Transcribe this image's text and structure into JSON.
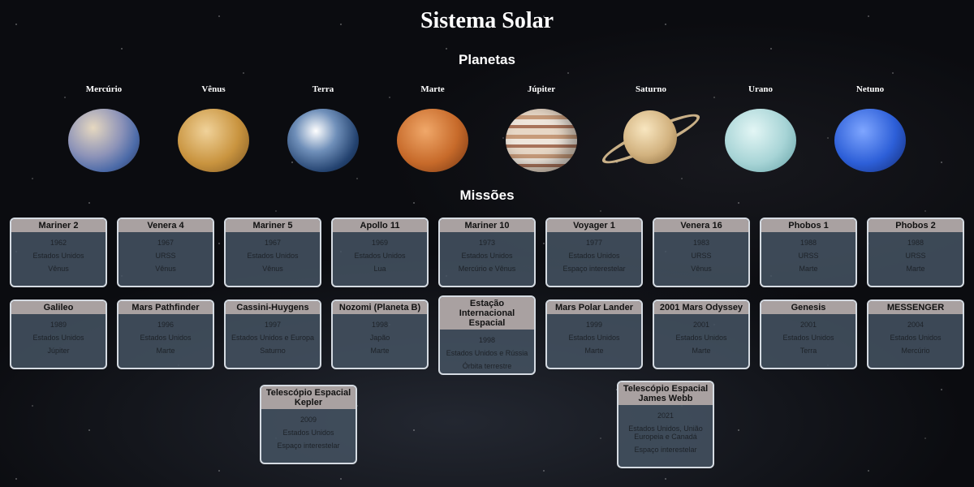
{
  "page": {
    "title": "Sistema Solar",
    "planets_heading": "Planetas",
    "missions_heading": "Missões"
  },
  "planets": [
    {
      "name": "Mercúrio",
      "icon": "mercury-icon"
    },
    {
      "name": "Vênus",
      "icon": "venus-icon"
    },
    {
      "name": "Terra",
      "icon": "earth-icon"
    },
    {
      "name": "Marte",
      "icon": "mars-icon"
    },
    {
      "name": "Júpiter",
      "icon": "jupiter-icon"
    },
    {
      "name": "Saturno",
      "icon": "saturn-icon"
    },
    {
      "name": "Urano",
      "icon": "uranus-icon"
    },
    {
      "name": "Netuno",
      "icon": "neptune-icon"
    }
  ],
  "missions": [
    {
      "name": "Mariner 2",
      "year": "1962",
      "country": "Estados Unidos",
      "target": "Vênus"
    },
    {
      "name": "Venera 4",
      "year": "1967",
      "country": "URSS",
      "target": "Vênus"
    },
    {
      "name": "Mariner 5",
      "year": "1967",
      "country": "Estados Unidos",
      "target": "Vênus"
    },
    {
      "name": "Apollo 11",
      "year": "1969",
      "country": "Estados Unidos",
      "target": "Lua"
    },
    {
      "name": "Mariner 10",
      "year": "1973",
      "country": "Estados Unidos",
      "target": "Mercúrio e Vênus"
    },
    {
      "name": "Voyager 1",
      "year": "1977",
      "country": "Estados Unidos",
      "target": "Espaço interestelar"
    },
    {
      "name": "Venera 16",
      "year": "1983",
      "country": "URSS",
      "target": "Vênus"
    },
    {
      "name": "Phobos 1",
      "year": "1988",
      "country": "URSS",
      "target": "Marte"
    },
    {
      "name": "Phobos 2",
      "year": "1988",
      "country": "URSS",
      "target": "Marte"
    },
    {
      "name": "Galileo",
      "year": "1989",
      "country": "Estados Unidos",
      "target": "Júpiter"
    },
    {
      "name": "Mars Pathfinder",
      "year": "1996",
      "country": "Estados Unidos",
      "target": "Marte"
    },
    {
      "name": "Cassini-Huygens",
      "year": "1997",
      "country": "Estados Unidos e Europa",
      "target": "Saturno"
    },
    {
      "name": "Nozomi (Planeta B)",
      "year": "1998",
      "country": "Japão",
      "target": "Marte"
    },
    {
      "name": "Estação Internacional Espacial",
      "year": "1998",
      "country": "Estados Unidos e Rússia",
      "target": "Órbita terrestre"
    },
    {
      "name": "Mars Polar Lander",
      "year": "1999",
      "country": "Estados Unidos",
      "target": "Marte"
    },
    {
      "name": "2001 Mars Odyssey",
      "year": "2001",
      "country": "Estados Unidos",
      "target": "Marte"
    },
    {
      "name": "Genesis",
      "year": "2001",
      "country": "Estados Unidos",
      "target": "Terra"
    },
    {
      "name": "MESSENGER",
      "year": "2004",
      "country": "Estados Unidos",
      "target": "Mercúrio"
    },
    {
      "name": "Telescópio Espacial Kepler",
      "year": "2009",
      "country": "Estados Unidos",
      "target": "Espaço interestelar"
    },
    {
      "name": "Telescópio Espacial James Webb",
      "year": "2021",
      "country": "Estados Unidos, União Europeia e Canadá",
      "target": "Espaço interestelar"
    }
  ]
}
